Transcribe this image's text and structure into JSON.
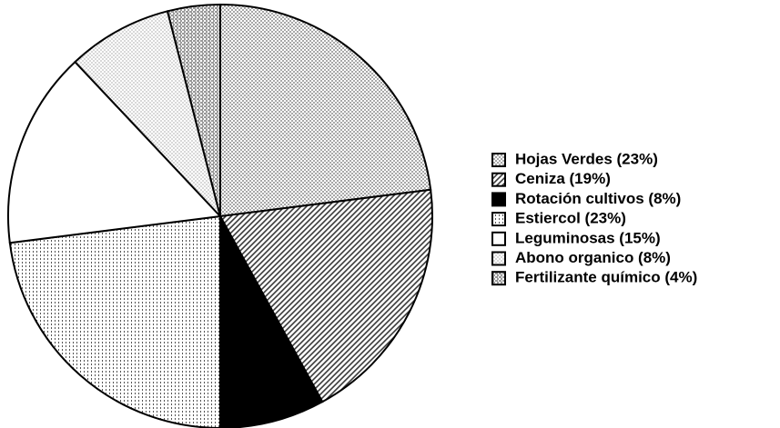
{
  "chart_data": {
    "type": "pie",
    "categories": [
      "Hojas Verdes (23%)",
      "Ceniza (19%)",
      "Rotación cultivos (8%)",
      "Estiercol (23%)",
      "Leguminosas (15%)",
      "Abono organico (8%)",
      "Fertilizante químico (4%)"
    ],
    "values": [
      23,
      19,
      8,
      23,
      15,
      8,
      4
    ],
    "colors": [
      "#a8a8a8",
      "#3a3a3a",
      "#000000",
      "#555555",
      "#ffffff",
      "#d8d8d8",
      "#9a9a9a"
    ]
  }
}
